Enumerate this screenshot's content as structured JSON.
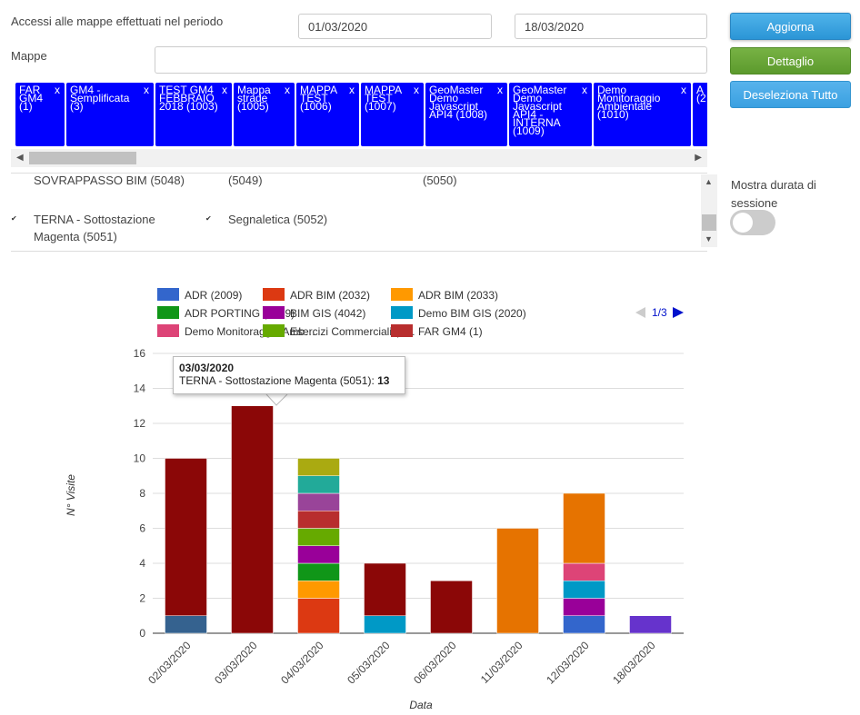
{
  "filters": {
    "period_label": "Accessi alle mappe effettuati nel periodo",
    "date_from": "01/03/2020",
    "date_to": "18/03/2020",
    "maps_label": "Mappe",
    "maps_value": ""
  },
  "buttons": {
    "update": "Aggiorna",
    "detail": "Dettaglio",
    "deselect_all": "Deseleziona Tutto"
  },
  "chips": [
    {
      "label": "FAR GM4 (1)"
    },
    {
      "label": "GM4 - Semplificata (3)"
    },
    {
      "label": "TEST GM4 FEBBRAIO 2018 (1003)"
    },
    {
      "label": "Mappa strade (1005)"
    },
    {
      "label": "MAPPA TEST (1006)"
    },
    {
      "label": "MAPPA TEST (1007)"
    },
    {
      "label": "GeoMaster Demo Javascript API4 (1008)"
    },
    {
      "label": "GeoMaster Demo Javascript API4 - INTERNA (1009)"
    },
    {
      "label": "Demo Monitoraggio Ambientale (1010)"
    },
    {
      "label": "A (2"
    }
  ],
  "chip_close": "x",
  "list": {
    "row1": [
      "SOVRAPPASSO BIM (5048)",
      "(5049)",
      "(5050)"
    ],
    "row2": [
      "TERNA - Sottostazione Magenta (5051)",
      "Segnaletica (5052)"
    ]
  },
  "session_toggle_label": "Mostra durata di sessione",
  "tooltip": {
    "date": "03/03/2020",
    "series": "TERNA - Sottostazione Magenta (5051): ",
    "value": "13"
  },
  "chart_data": {
    "type": "bar",
    "stacked": true,
    "xlabel": "Data",
    "ylabel": "N° Visite",
    "ylim": [
      0,
      16
    ],
    "yticks": [
      0,
      2,
      4,
      6,
      8,
      10,
      12,
      14,
      16
    ],
    "categories": [
      "02/03/2020",
      "03/03/2020",
      "04/03/2020",
      "05/03/2020",
      "06/03/2020",
      "11/03/2020",
      "12/03/2020",
      "18/03/2020"
    ],
    "legend": {
      "position": "top",
      "page": "1/3",
      "items": [
        {
          "label": "ADR (2009)",
          "color": "#3366cc"
        },
        {
          "label": "ADR BIM (2032)",
          "color": "#dc3912"
        },
        {
          "label": "ADR BIM (2033)",
          "color": "#ff9900"
        },
        {
          "label": "ADR PORTING (2029)",
          "color": "#109618"
        },
        {
          "label": "BIM GIS (4042)",
          "color": "#990099"
        },
        {
          "label": "Demo BIM GIS (2020)",
          "color": "#0099c6"
        },
        {
          "label": "Demo Monitoraggio Amb…",
          "color": "#dd4477"
        },
        {
          "label": "Esercizi Commerciali (2…",
          "color": "#66aa00"
        },
        {
          "label": "FAR GM4 (1)",
          "color": "#b82e2e"
        }
      ]
    },
    "stacks": [
      [
        {
          "value": 1,
          "color": "#35628f"
        },
        {
          "value": 9,
          "color": "#8b0707"
        }
      ],
      [
        {
          "value": 13,
          "color": "#8b0707",
          "series": "TERNA - Sottostazione Magenta (5051)"
        }
      ],
      [
        {
          "value": 2,
          "color": "#dc3912"
        },
        {
          "value": 1,
          "color": "#ff9900"
        },
        {
          "value": 1,
          "color": "#109618"
        },
        {
          "value": 1,
          "color": "#990099"
        },
        {
          "value": 1,
          "color": "#66aa00"
        },
        {
          "value": 1,
          "color": "#b82e2e"
        },
        {
          "value": 1,
          "color": "#994499"
        },
        {
          "value": 1,
          "color": "#22aa99"
        },
        {
          "value": 1,
          "color": "#aaaa11"
        }
      ],
      [
        {
          "value": 1,
          "color": "#0099c6"
        },
        {
          "value": 3,
          "color": "#8b0707"
        }
      ],
      [
        {
          "value": 3,
          "color": "#8b0707"
        }
      ],
      [
        {
          "value": 6,
          "color": "#e67300"
        }
      ],
      [
        {
          "value": 1,
          "color": "#3366cc"
        },
        {
          "value": 1,
          "color": "#990099"
        },
        {
          "value": 1,
          "color": "#0099c6"
        },
        {
          "value": 1,
          "color": "#dd4477"
        },
        {
          "value": 4,
          "color": "#e67300"
        }
      ],
      [
        {
          "value": 1,
          "color": "#6633cc"
        }
      ]
    ]
  }
}
